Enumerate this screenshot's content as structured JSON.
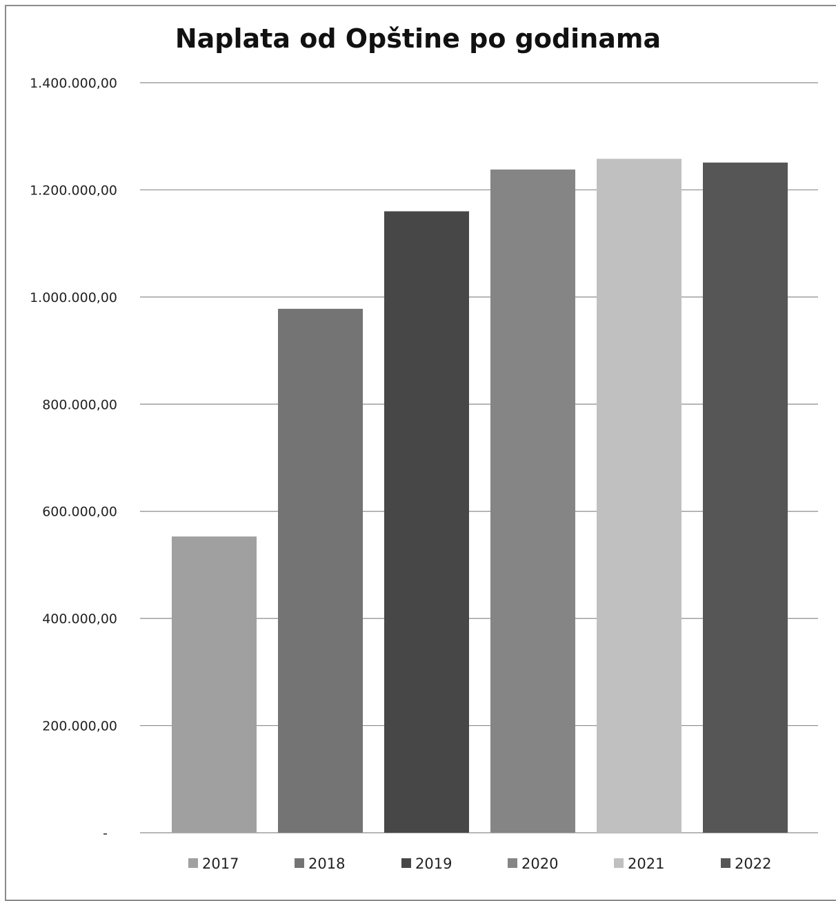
{
  "chart_data": {
    "type": "bar",
    "title": "Naplata od Opštine po godinama",
    "xlabel": "",
    "ylabel": "",
    "ylim": [
      0,
      1400000
    ],
    "grid": "horizontal",
    "legend_position": "bottom",
    "y_ticks": [
      {
        "value": 0,
        "label": "-"
      },
      {
        "value": 200000,
        "label": "200.000,00"
      },
      {
        "value": 400000,
        "label": "400.000,00"
      },
      {
        "value": 600000,
        "label": "600.000,00"
      },
      {
        "value": 800000,
        "label": "800.000,00"
      },
      {
        "value": 1000000,
        "label": "1.000.000,00"
      },
      {
        "value": 1200000,
        "label": "1.200.000,00"
      },
      {
        "value": 1400000,
        "label": "1.400.000,00"
      }
    ],
    "series": [
      {
        "name": "2017",
        "value": 553000,
        "color": "#a0a0a0"
      },
      {
        "name": "2018",
        "value": 978000,
        "color": "#747474"
      },
      {
        "name": "2019",
        "value": 1160000,
        "color": "#474747"
      },
      {
        "name": "2020",
        "value": 1238000,
        "color": "#858585"
      },
      {
        "name": "2021",
        "value": 1258000,
        "color": "#c0c0c0"
      },
      {
        "name": "2022",
        "value": 1251000,
        "color": "#565656"
      }
    ]
  }
}
